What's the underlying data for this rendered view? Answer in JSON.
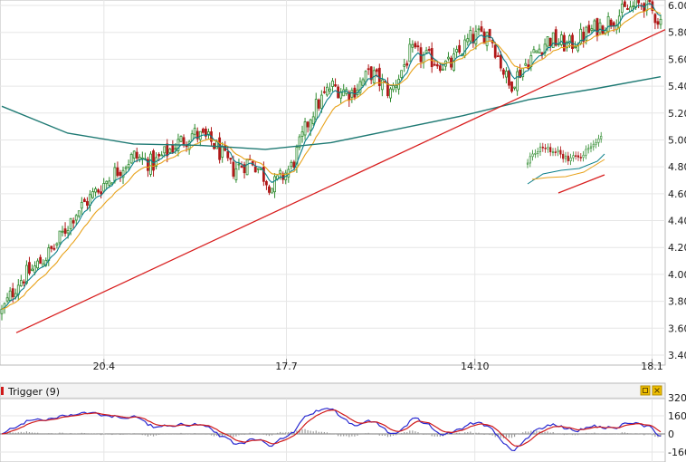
{
  "main_panel": {
    "y_ticks": [
      "6.00",
      "5.80",
      "5.60",
      "5.40",
      "5.20",
      "5.00",
      "4.80",
      "4.60",
      "4.40",
      "4.20",
      "4.00",
      "3.80",
      "3.60",
      "3.40"
    ],
    "x_ticks": [
      "20.4",
      "17.7",
      "14.10",
      "18.1"
    ]
  },
  "indicator_panel": {
    "title": "Trigger (9)",
    "y_ticks": [
      "320",
      "160",
      "0",
      "-160"
    ],
    "icons": [
      "maximize-icon",
      "close-icon"
    ]
  },
  "colors": {
    "bull": "#2e8b2e",
    "bear": "#b01818",
    "ma_fast": "#0b7f8a",
    "ma_slow": "#e8a21a",
    "ma_long": "#1f7a74",
    "trendline": "#d81e1e",
    "osc_blue": "#2a2ad0",
    "osc_red": "#d01a1a",
    "hist": "#9a9a9a",
    "icon_bg": "#f0c000"
  },
  "chart_data": [
    {
      "type": "candlestick",
      "price_range": [
        3.4,
        6.08
      ],
      "x": [
        "20.4",
        "17.7",
        "14.10",
        "18.1"
      ],
      "close_path": [
        {
          "x": 0.0,
          "y": 3.72
        },
        {
          "x": 0.025,
          "y": 3.95
        },
        {
          "x": 0.05,
          "y": 4.05
        },
        {
          "x": 0.08,
          "y": 4.2
        },
        {
          "x": 0.11,
          "y": 4.45
        },
        {
          "x": 0.14,
          "y": 4.6
        },
        {
          "x": 0.17,
          "y": 4.75
        },
        {
          "x": 0.2,
          "y": 4.88
        },
        {
          "x": 0.23,
          "y": 4.82
        },
        {
          "x": 0.26,
          "y": 4.95
        },
        {
          "x": 0.29,
          "y": 5.05
        },
        {
          "x": 0.32,
          "y": 4.98
        },
        {
          "x": 0.35,
          "y": 4.78
        },
        {
          "x": 0.38,
          "y": 4.85
        },
        {
          "x": 0.41,
          "y": 4.65
        },
        {
          "x": 0.44,
          "y": 4.8
        },
        {
          "x": 0.47,
          "y": 5.2
        },
        {
          "x": 0.5,
          "y": 5.4
        },
        {
          "x": 0.53,
          "y": 5.35
        },
        {
          "x": 0.56,
          "y": 5.5
        },
        {
          "x": 0.59,
          "y": 5.35
        },
        {
          "x": 0.62,
          "y": 5.65
        },
        {
          "x": 0.65,
          "y": 5.6
        },
        {
          "x": 0.68,
          "y": 5.55
        },
        {
          "x": 0.71,
          "y": 5.75
        },
        {
          "x": 0.74,
          "y": 5.8
        },
        {
          "x": 0.77,
          "y": 5.4
        },
        {
          "x": 0.8,
          "y": 5.6
        },
        {
          "x": 0.83,
          "y": 5.75
        },
        {
          "x": 0.86,
          "y": 5.7
        },
        {
          "x": 0.89,
          "y": 5.8
        },
        {
          "x": 0.92,
          "y": 5.88
        },
        {
          "x": 0.95,
          "y": 5.97
        },
        {
          "x": 0.975,
          "y": 6.02
        },
        {
          "x": 1.0,
          "y": 5.88
        }
      ],
      "ma_long": [
        {
          "x": 0.0,
          "y": 5.25
        },
        {
          "x": 0.1,
          "y": 5.05
        },
        {
          "x": 0.2,
          "y": 4.97
        },
        {
          "x": 0.3,
          "y": 4.96
        },
        {
          "x": 0.4,
          "y": 4.93
        },
        {
          "x": 0.5,
          "y": 4.98
        },
        {
          "x": 0.6,
          "y": 5.08
        },
        {
          "x": 0.7,
          "y": 5.18
        },
        {
          "x": 0.8,
          "y": 5.3
        },
        {
          "x": 0.9,
          "y": 5.38
        },
        {
          "x": 1.0,
          "y": 5.47
        }
      ],
      "trendlines": [
        {
          "from": {
            "x": 0.0,
            "y": 3.58
          },
          "to": {
            "x": 1.0,
            "y": 5.82
          }
        }
      ]
    },
    {
      "type": "line",
      "name": "Trigger (9)",
      "range": [
        -190,
        320
      ],
      "series": [
        "oscillator",
        "signal",
        "histogram"
      ]
    }
  ]
}
